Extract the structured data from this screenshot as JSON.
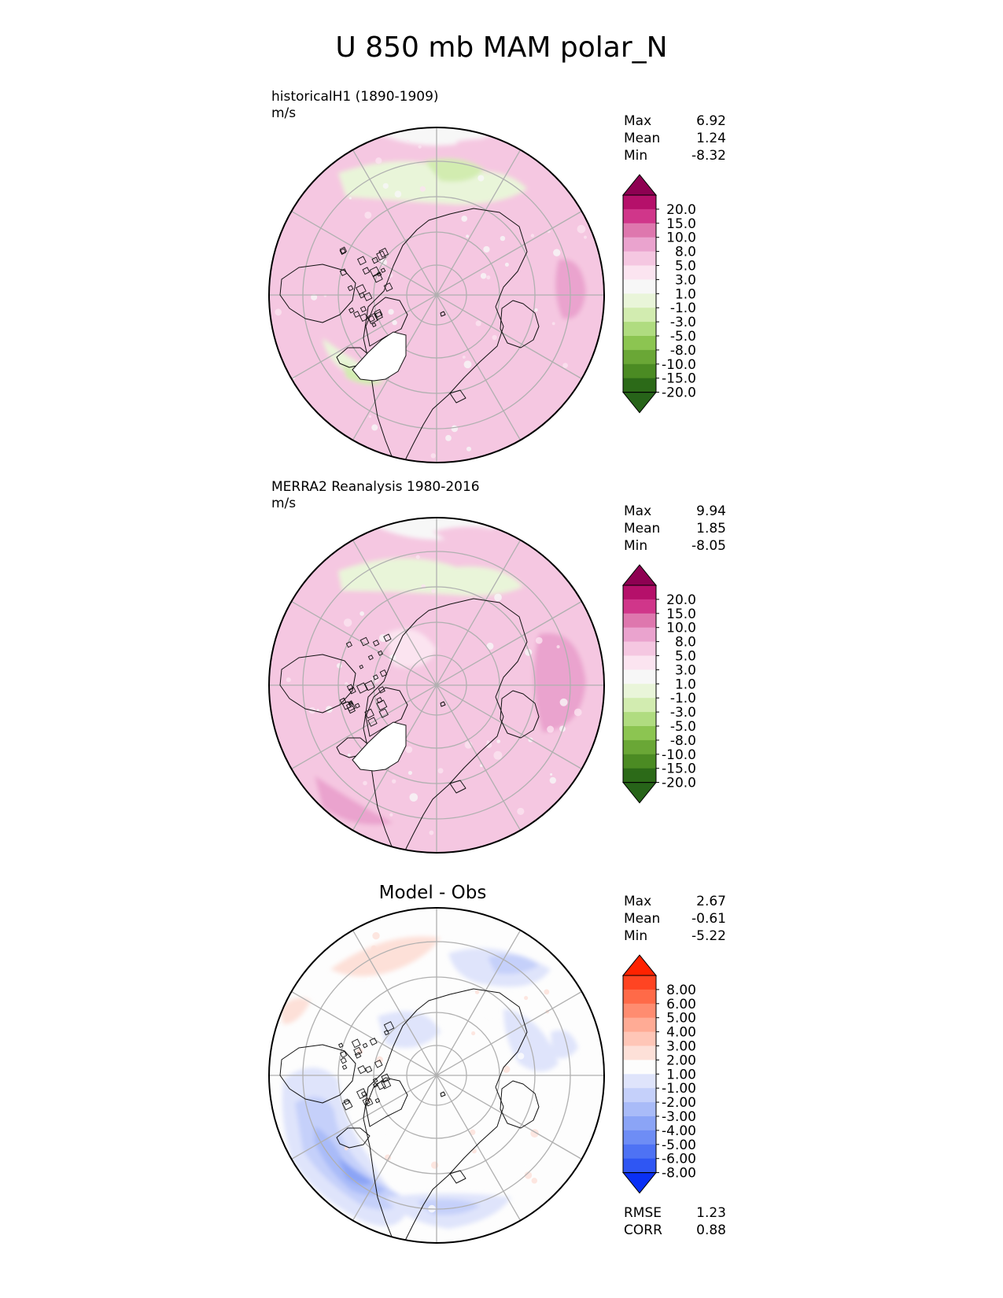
{
  "figure": {
    "title": "U 850 mb MAM polar_N"
  },
  "panels": [
    {
      "id": "model",
      "title": "historicalH1 (1890-1909)",
      "units": "m/s",
      "stats": [
        {
          "label": "Max",
          "value": "6.92"
        },
        {
          "label": "Mean",
          "value": "1.24"
        },
        {
          "label": "Min",
          "value": "-8.32"
        }
      ]
    },
    {
      "id": "obs",
      "title": "MERRA2 Reanalysis 1980-2016",
      "units": "m/s",
      "stats": [
        {
          "label": "Max",
          "value": "9.94"
        },
        {
          "label": "Mean",
          "value": "1.85"
        },
        {
          "label": "Min",
          "value": "-8.05"
        }
      ]
    },
    {
      "id": "diff",
      "title": "Model - Obs",
      "stats": [
        {
          "label": "Max",
          "value": "2.67"
        },
        {
          "label": "Mean",
          "value": "-0.61"
        },
        {
          "label": "Min",
          "value": "-5.22"
        }
      ],
      "metrics": [
        {
          "label": "RMSE",
          "value": "1.23"
        },
        {
          "label": "CORR",
          "value": "0.88"
        }
      ]
    }
  ],
  "chart_data": [
    {
      "type": "heatmap",
      "projection": "north-polar-stereographic",
      "title": "historicalH1 (1890-1909)",
      "units": "m/s",
      "levels": [
        "20.0",
        "15.0",
        "10.0",
        "8.0",
        "5.0",
        "3.0",
        "1.0",
        "-1.0",
        "-3.0",
        "-5.0",
        "-8.0",
        "-10.0",
        "-15.0",
        "-20.0"
      ],
      "colors": [
        "#8e0152",
        "#b5106a",
        "#d0368a",
        "#de77ae",
        "#eaa3ce",
        "#f5c7e1",
        "#fbe4f0",
        "#f7f7f7",
        "#e9f5d9",
        "#d2ecb0",
        "#b0dc80",
        "#8cc551",
        "#6aa736",
        "#4b8b23",
        "#2c6a18",
        "#276419"
      ],
      "max": 6.92,
      "mean": 1.24,
      "min": -8.32
    },
    {
      "type": "heatmap",
      "projection": "north-polar-stereographic",
      "title": "MERRA2 Reanalysis 1980-2016",
      "units": "m/s",
      "levels": [
        "20.0",
        "15.0",
        "10.0",
        "8.0",
        "5.0",
        "3.0",
        "1.0",
        "-1.0",
        "-3.0",
        "-5.0",
        "-8.0",
        "-10.0",
        "-15.0",
        "-20.0"
      ],
      "colors": [
        "#8e0152",
        "#b5106a",
        "#d0368a",
        "#de77ae",
        "#eaa3ce",
        "#f5c7e1",
        "#fbe4f0",
        "#f7f7f7",
        "#e9f5d9",
        "#d2ecb0",
        "#b0dc80",
        "#8cc551",
        "#6aa736",
        "#4b8b23",
        "#2c6a18",
        "#276419"
      ],
      "max": 9.94,
      "mean": 1.85,
      "min": -8.05
    },
    {
      "type": "heatmap",
      "projection": "north-polar-stereographic",
      "title": "Model - Obs",
      "levels": [
        "8.00",
        "6.00",
        "5.00",
        "4.00",
        "3.00",
        "2.00",
        "1.00",
        "-1.00",
        "-2.00",
        "-3.00",
        "-4.00",
        "-5.00",
        "-6.00",
        "-8.00"
      ],
      "colors": [
        "#ff2200",
        "#ff4422",
        "#ff6a48",
        "#ff8c70",
        "#ffab95",
        "#ffc6b7",
        "#fde0d8",
        "#fdfdfd",
        "#dfe4fb",
        "#c5d0fa",
        "#a9bbf8",
        "#8ba4f6",
        "#6e8df5",
        "#4e72f4",
        "#2f56f3",
        "#0a30f5"
      ],
      "max": 2.67,
      "mean": -0.61,
      "min": -5.22,
      "rmse": 1.23,
      "corr": 0.88
    }
  ]
}
